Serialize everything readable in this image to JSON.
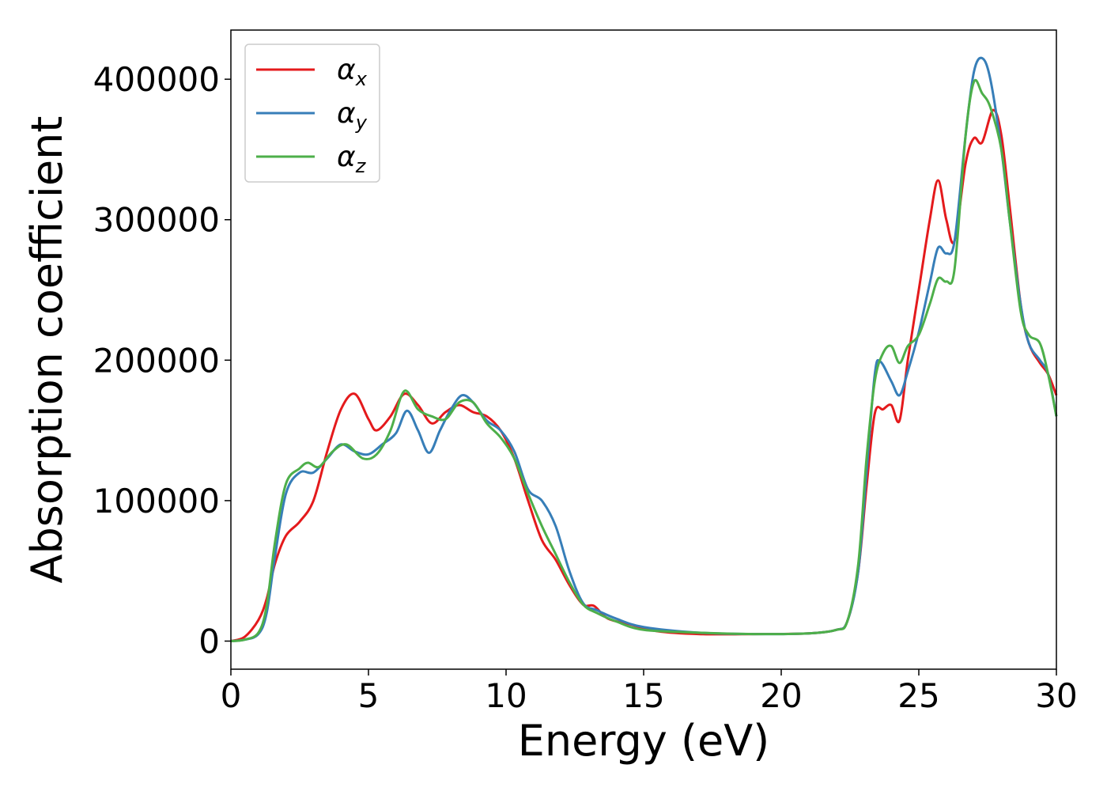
{
  "chart_data": {
    "type": "line",
    "title": "",
    "xlabel": "Energy (eV)",
    "ylabel": "Absorption coefficient",
    "xlim": [
      0,
      30
    ],
    "ylim": [
      -20000,
      435000
    ],
    "xticks": [
      0,
      5,
      10,
      15,
      20,
      25,
      30
    ],
    "yticks": [
      0,
      100000,
      200000,
      300000,
      400000
    ],
    "grid": false,
    "legend_position": "top-left",
    "series": [
      {
        "name": "αx",
        "legend_base": "α",
        "legend_sub": "x",
        "color": "#e41a1c",
        "points": [
          [
            0,
            0
          ],
          [
            0.5,
            3000
          ],
          [
            1.0,
            15000
          ],
          [
            1.3,
            30000
          ],
          [
            1.6,
            55000
          ],
          [
            2.0,
            75000
          ],
          [
            2.5,
            85000
          ],
          [
            3.0,
            100000
          ],
          [
            3.5,
            135000
          ],
          [
            4.0,
            165000
          ],
          [
            4.5,
            176000
          ],
          [
            5.0,
            158000
          ],
          [
            5.3,
            150000
          ],
          [
            5.8,
            160000
          ],
          [
            6.3,
            176000
          ],
          [
            6.8,
            168000
          ],
          [
            7.3,
            155000
          ],
          [
            7.8,
            163000
          ],
          [
            8.3,
            168000
          ],
          [
            8.8,
            163000
          ],
          [
            9.3,
            160000
          ],
          [
            9.8,
            150000
          ],
          [
            10.3,
            130000
          ],
          [
            10.8,
            100000
          ],
          [
            11.3,
            72000
          ],
          [
            11.8,
            58000
          ],
          [
            12.3,
            40000
          ],
          [
            12.8,
            26000
          ],
          [
            13.2,
            25000
          ],
          [
            13.7,
            16000
          ],
          [
            14.5,
            12000
          ],
          [
            15.5,
            7000
          ],
          [
            17,
            5000
          ],
          [
            19,
            5000
          ],
          [
            21,
            5500
          ],
          [
            22.0,
            8000
          ],
          [
            22.4,
            14000
          ],
          [
            22.8,
            50000
          ],
          [
            23.1,
            110000
          ],
          [
            23.4,
            162000
          ],
          [
            23.7,
            165000
          ],
          [
            24.0,
            168000
          ],
          [
            24.3,
            157000
          ],
          [
            24.6,
            200000
          ],
          [
            25.0,
            250000
          ],
          [
            25.4,
            300000
          ],
          [
            25.7,
            328000
          ],
          [
            26.0,
            300000
          ],
          [
            26.3,
            285000
          ],
          [
            26.7,
            340000
          ],
          [
            27.0,
            358000
          ],
          [
            27.3,
            355000
          ],
          [
            27.7,
            378000
          ],
          [
            28.0,
            360000
          ],
          [
            28.3,
            310000
          ],
          [
            28.7,
            240000
          ],
          [
            29.0,
            212000
          ],
          [
            29.4,
            198000
          ],
          [
            29.7,
            190000
          ],
          [
            30.0,
            175000
          ]
        ]
      },
      {
        "name": "αy",
        "legend_base": "α",
        "legend_sub": "y",
        "color": "#377eb8",
        "points": [
          [
            0,
            0
          ],
          [
            0.5,
            1000
          ],
          [
            1.0,
            5000
          ],
          [
            1.3,
            20000
          ],
          [
            1.6,
            60000
          ],
          [
            2.0,
            105000
          ],
          [
            2.5,
            120000
          ],
          [
            3.0,
            120000
          ],
          [
            3.5,
            130000
          ],
          [
            4.0,
            140000
          ],
          [
            4.5,
            135000
          ],
          [
            5.0,
            133000
          ],
          [
            5.5,
            140000
          ],
          [
            6.0,
            148000
          ],
          [
            6.4,
            164000
          ],
          [
            6.8,
            150000
          ],
          [
            7.2,
            134000
          ],
          [
            7.6,
            150000
          ],
          [
            8.0,
            165000
          ],
          [
            8.4,
            175000
          ],
          [
            8.8,
            170000
          ],
          [
            9.3,
            157000
          ],
          [
            9.8,
            150000
          ],
          [
            10.3,
            135000
          ],
          [
            10.8,
            108000
          ],
          [
            11.3,
            100000
          ],
          [
            11.8,
            82000
          ],
          [
            12.3,
            50000
          ],
          [
            12.8,
            27000
          ],
          [
            13.3,
            22000
          ],
          [
            14.0,
            16000
          ],
          [
            15.0,
            10000
          ],
          [
            17,
            6000
          ],
          [
            19,
            5000
          ],
          [
            21,
            5500
          ],
          [
            22.0,
            8000
          ],
          [
            22.4,
            14000
          ],
          [
            22.8,
            50000
          ],
          [
            23.1,
            120000
          ],
          [
            23.4,
            190000
          ],
          [
            23.6,
            199000
          ],
          [
            24.0,
            185000
          ],
          [
            24.3,
            175000
          ],
          [
            24.6,
            192000
          ],
          [
            25.0,
            220000
          ],
          [
            25.4,
            255000
          ],
          [
            25.7,
            280000
          ],
          [
            26.0,
            276000
          ],
          [
            26.3,
            285000
          ],
          [
            26.7,
            360000
          ],
          [
            27.0,
            405000
          ],
          [
            27.3,
            415000
          ],
          [
            27.6,
            400000
          ],
          [
            28.0,
            350000
          ],
          [
            28.3,
            300000
          ],
          [
            28.7,
            240000
          ],
          [
            29.0,
            212000
          ],
          [
            29.4,
            200000
          ],
          [
            29.7,
            190000
          ],
          [
            30.0,
            160000
          ]
        ]
      },
      {
        "name": "αz",
        "legend_base": "α",
        "legend_sub": "z",
        "color": "#4daf4a",
        "points": [
          [
            0,
            0
          ],
          [
            0.5,
            1000
          ],
          [
            1.0,
            6000
          ],
          [
            1.3,
            25000
          ],
          [
            1.6,
            70000
          ],
          [
            2.0,
            112000
          ],
          [
            2.5,
            123000
          ],
          [
            2.8,
            127000
          ],
          [
            3.2,
            124000
          ],
          [
            3.7,
            135000
          ],
          [
            4.2,
            140000
          ],
          [
            4.8,
            130000
          ],
          [
            5.3,
            133000
          ],
          [
            5.8,
            150000
          ],
          [
            6.3,
            178000
          ],
          [
            6.8,
            165000
          ],
          [
            7.3,
            160000
          ],
          [
            7.8,
            158000
          ],
          [
            8.3,
            170000
          ],
          [
            8.8,
            170000
          ],
          [
            9.3,
            155000
          ],
          [
            9.8,
            145000
          ],
          [
            10.3,
            130000
          ],
          [
            10.8,
            105000
          ],
          [
            11.3,
            82000
          ],
          [
            11.8,
            62000
          ],
          [
            12.3,
            42000
          ],
          [
            12.8,
            26000
          ],
          [
            13.3,
            20000
          ],
          [
            14.0,
            14000
          ],
          [
            15.0,
            8000
          ],
          [
            17,
            6000
          ],
          [
            19,
            5000
          ],
          [
            21,
            5500
          ],
          [
            22.0,
            8000
          ],
          [
            22.4,
            14000
          ],
          [
            22.8,
            55000
          ],
          [
            23.1,
            130000
          ],
          [
            23.4,
            185000
          ],
          [
            23.7,
            205000
          ],
          [
            24.0,
            210000
          ],
          [
            24.3,
            198000
          ],
          [
            24.6,
            210000
          ],
          [
            25.0,
            218000
          ],
          [
            25.4,
            240000
          ],
          [
            25.7,
            258000
          ],
          [
            26.0,
            256000
          ],
          [
            26.3,
            265000
          ],
          [
            26.7,
            360000
          ],
          [
            27.0,
            398000
          ],
          [
            27.3,
            390000
          ],
          [
            27.6,
            380000
          ],
          [
            28.0,
            350000
          ],
          [
            28.3,
            300000
          ],
          [
            28.7,
            235000
          ],
          [
            29.0,
            218000
          ],
          [
            29.4,
            212000
          ],
          [
            29.7,
            190000
          ],
          [
            30.0,
            160000
          ]
        ]
      }
    ]
  }
}
